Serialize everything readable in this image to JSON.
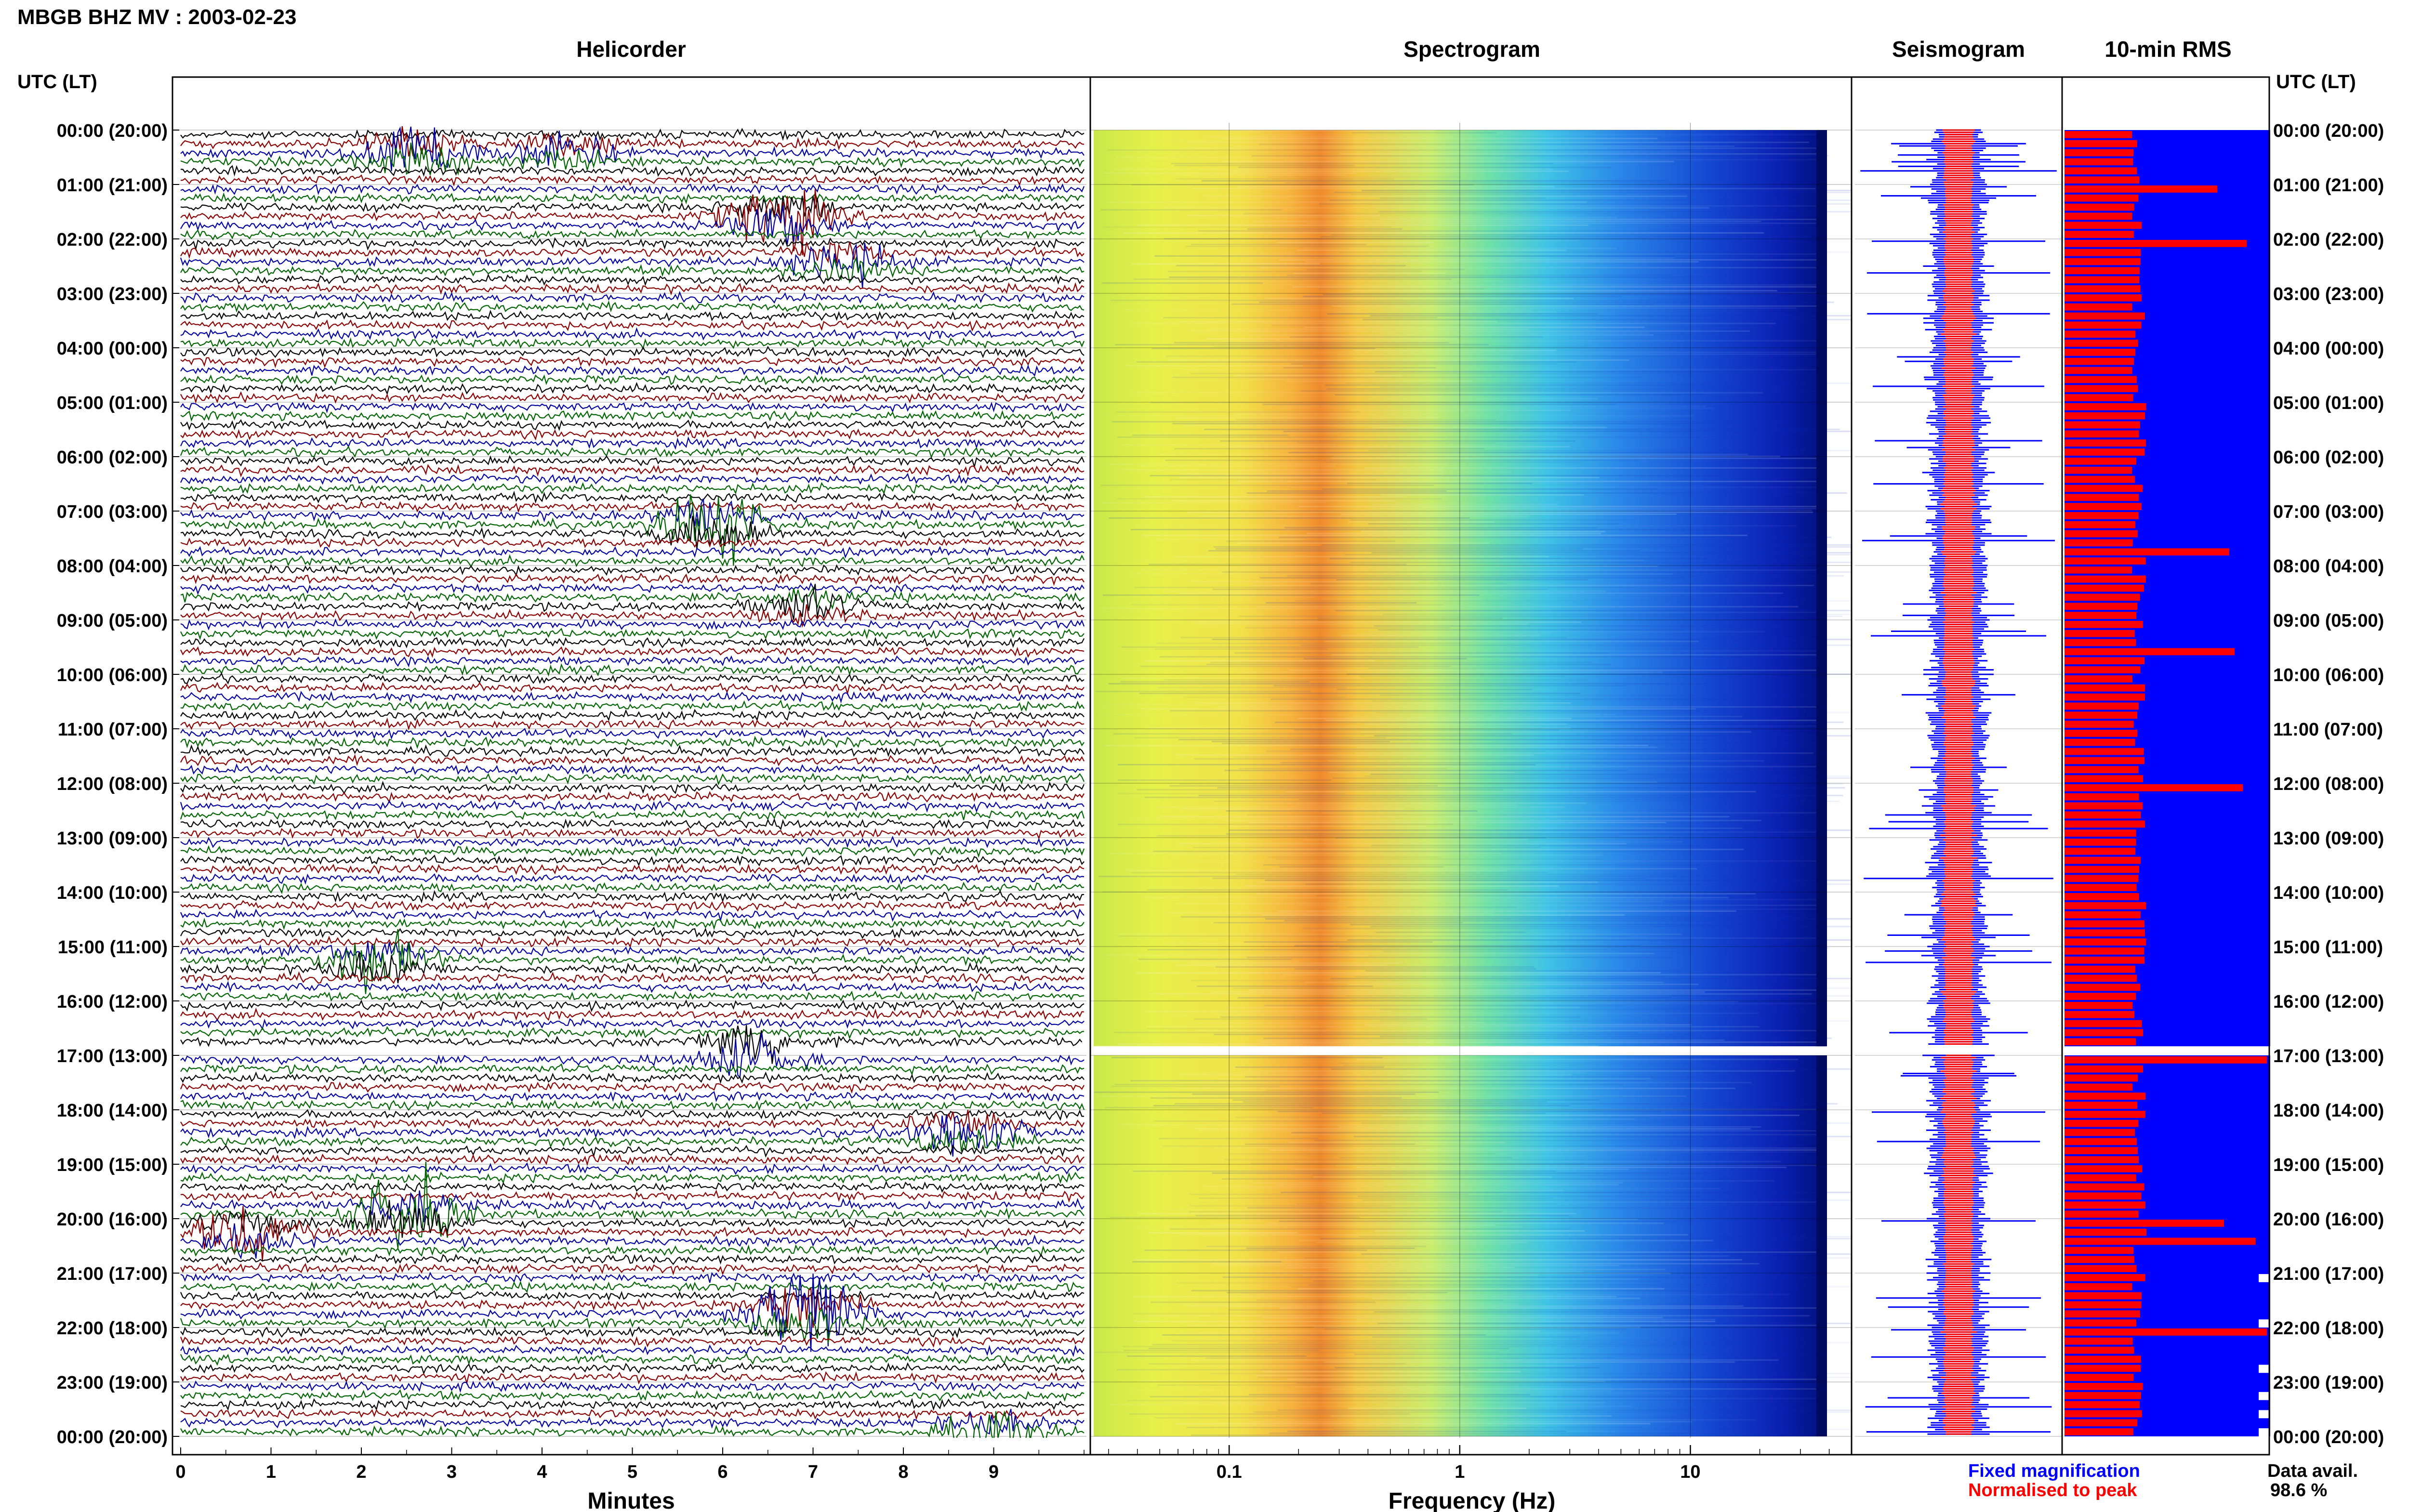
{
  "header": {
    "station_title": "MBGB BHZ MV : 2003-02-23",
    "utc_lt_label": "UTC (LT)",
    "panel_titles": [
      "Helicorder",
      "Spectrogram",
      "Seismogram",
      "10-min RMS"
    ]
  },
  "colors": {
    "trace_cycle": [
      "#000000",
      "#8b0000",
      "#0000a0",
      "#006400"
    ],
    "fixed_magnification": "#0000ff",
    "normalised_to_peak": "#ff0000",
    "rms_background": "#0000ff",
    "rms_bars": "#ff0000"
  },
  "chart_data": [
    {
      "type": "line",
      "title": "Helicorder",
      "xlabel": "Minutes",
      "ylabel": "UTC (LT)",
      "xlim": [
        0,
        10
      ],
      "x_ticks": [
        0,
        1,
        2,
        3,
        4,
        5,
        6,
        7,
        8,
        9
      ],
      "y_tick_labels": [
        "00:00 (20:00)",
        "01:00 (21:00)",
        "02:00 (22:00)",
        "03:00 (23:00)",
        "04:00 (00:00)",
        "05:00 (01:00)",
        "06:00 (02:00)",
        "07:00 (03:00)",
        "08:00 (04:00)",
        "09:00 (05:00)",
        "10:00 (06:00)",
        "11:00 (07:00)",
        "12:00 (08:00)",
        "13:00 (09:00)",
        "14:00 (10:00)",
        "15:00 (11:00)",
        "16:00 (12:00)",
        "17:00 (13:00)",
        "18:00 (14:00)",
        "19:00 (15:00)",
        "20:00 (16:00)",
        "21:00 (17:00)",
        "22:00 (18:00)",
        "23:00 (19:00)",
        "00:00 (20:00)"
      ],
      "rows": 144,
      "row_minutes": 10,
      "data_gap_utc": [
        "16:50",
        "17:00"
      ],
      "events": [
        {
          "utc_hour": 0.4,
          "minute": 2.6,
          "amplitude": 0.8,
          "color": "blue"
        },
        {
          "utc_hour": 0.3,
          "minute": 4.3,
          "amplitude": 0.5,
          "color": "black"
        },
        {
          "utc_hour": 1.5,
          "minute": 6.6,
          "amplitude": 0.9,
          "color": "black"
        },
        {
          "utc_hour": 2.3,
          "minute": 7.3,
          "amplitude": 0.6,
          "color": "green"
        },
        {
          "utc_hour": 7.1,
          "minute": 5.9,
          "amplitude": 1.0,
          "color": "black"
        },
        {
          "utc_hour": 8.6,
          "minute": 6.9,
          "amplitude": 0.4,
          "color": "black"
        },
        {
          "utc_hour": 15.1,
          "minute": 2.2,
          "amplitude": 0.7,
          "color": "black"
        },
        {
          "utc_hour": 16.8,
          "minute": 6.3,
          "amplitude": 1.2,
          "color": "blue"
        },
        {
          "utc_hour": 18.4,
          "minute": 8.7,
          "amplitude": 0.7,
          "color": "green"
        },
        {
          "utc_hour": 19.9,
          "minute": 2.5,
          "amplitude": 1.1,
          "color": "green"
        },
        {
          "utc_hour": 20.1,
          "minute": 0.7,
          "amplitude": 0.7,
          "color": "blue"
        },
        {
          "utc_hour": 21.6,
          "minute": 6.9,
          "amplitude": 1.3,
          "color": "green"
        },
        {
          "utc_hour": 23.9,
          "minute": 9.0,
          "amplitude": 0.5,
          "color": "green"
        }
      ]
    },
    {
      "type": "heatmap",
      "title": "Spectrogram",
      "xlabel": "Frequency (Hz)",
      "x_scale": "log",
      "xlim": [
        0.025,
        50
      ],
      "x_tick_labels": [
        "0.1",
        "1",
        "10"
      ],
      "peak_band_hz": [
        0.2,
        0.5
      ]
    },
    {
      "type": "line",
      "title": "Seismogram",
      "series": [
        {
          "name": "Fixed magnification",
          "color": "#0000ff"
        },
        {
          "name": "Normalised to peak",
          "color": "#ff0000"
        }
      ]
    },
    {
      "type": "bar",
      "title": "10-min RMS",
      "bars": 144,
      "spikes_utc": [
        "01:00",
        "02:00",
        "07:40",
        "09:30",
        "12:00",
        "20:00",
        "20:20",
        "22:00"
      ]
    }
  ],
  "footer": {
    "legend_fixed": "Fixed magnification",
    "legend_normalised": "Normalised to peak",
    "data_avail_label": "Data avail.",
    "data_avail_value": "98.6 %"
  }
}
